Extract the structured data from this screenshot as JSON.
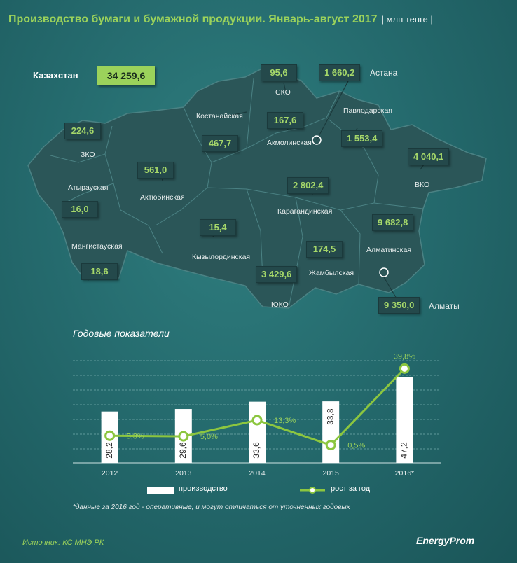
{
  "title": "Производство бумаги и бумажной продукции. Январь-август 2017",
  "unit": "| млн тенге |",
  "country": {
    "name": "Казахстан",
    "value": "34 259,6"
  },
  "regions": [
    {
      "name": "СКО",
      "value": "95,6"
    },
    {
      "name": "Астана",
      "value": "1 660,2"
    },
    {
      "name": "Павлодарская",
      "value": "1 553,4"
    },
    {
      "name": "Костанайская",
      "value": "467,7"
    },
    {
      "name": "Акмолинская",
      "value": "167,6"
    },
    {
      "name": "ЗКО",
      "value": "224,6"
    },
    {
      "name": "Атырауская",
      "value": "16,0"
    },
    {
      "name": "Актюбинская",
      "value": "561,0"
    },
    {
      "name": "ВКО",
      "value": "4 040,1"
    },
    {
      "name": "Карагандинская",
      "value": "2 802,4"
    },
    {
      "name": "Мангистауская",
      "value": "18,6"
    },
    {
      "name": "Кызылординская",
      "value": "15,4"
    },
    {
      "name": "Алматинская",
      "value": "9 682,8"
    },
    {
      "name": "Жамбылская",
      "value": "174,5"
    },
    {
      "name": "ЮКО",
      "value": "3 429,6"
    },
    {
      "name": "Алматы",
      "value": "9 350,0"
    }
  ],
  "colors": {
    "accent": "#9bd25b",
    "background": "#256b6e",
    "map": "#2b5658",
    "bar": "#ffffff",
    "line": "#8cc63f"
  },
  "chart_title": "Годовые показатели",
  "chart_data": {
    "type": "bar",
    "categories": [
      "2012",
      "2013",
      "2014",
      "2015",
      "2016*"
    ],
    "series": [
      {
        "name": "производство",
        "type": "bar",
        "values": [
          28.2,
          29.6,
          33.6,
          33.8,
          47.2
        ],
        "labels": [
          "28,2",
          "29,6",
          "33,6",
          "33,8",
          "47,2"
        ]
      },
      {
        "name": "рост за год",
        "type": "line",
        "values": [
          5.3,
          5.0,
          13.3,
          0.5,
          39.8
        ],
        "labels": [
          "5,3%",
          "5,0%",
          "13,3%",
          "0,5%",
          "39,8%"
        ]
      }
    ],
    "grid": true
  },
  "legend": {
    "bars": "производство",
    "line": "рост за год"
  },
  "footnote": "*данные за 2016 год - оперативные, и могут отличаться от уточненных годовых",
  "source": "Источник: КС МНЭ РК",
  "logo": "EnergyProm"
}
